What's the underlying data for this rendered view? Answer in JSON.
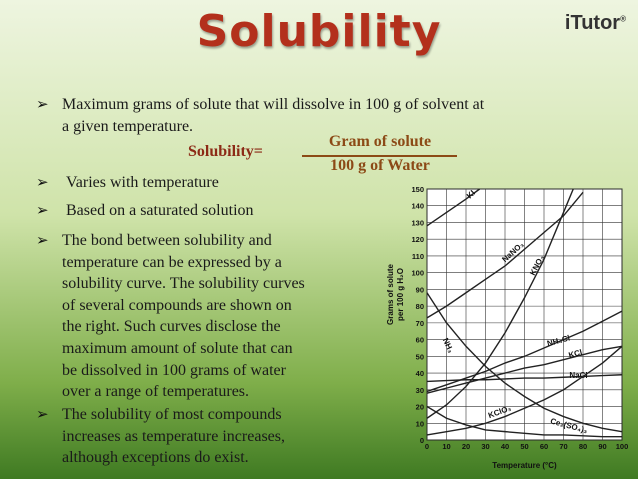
{
  "header": {
    "title": "Solubility",
    "logo": "iTutor",
    "logo_mark": "®"
  },
  "bullets": [
    [
      "Maximum grams of solute that will dissolve in 100 g of solvent at",
      "a given temperature."
    ],
    [
      "Varies with temperature"
    ],
    [
      "Based on a saturated solution"
    ],
    [
      "The bond between solubility and",
      "temperature can be expressed by a",
      "solubility curve. The solubility curves",
      "of several compounds are shown on",
      "the right. Such curves disclose the",
      "maximum amount of solute that can",
      "be dissolved in 100 grams of water",
      "over a range of temperatures."
    ],
    [
      "The solubility of most compounds",
      "increases as temperature increases,",
      "although exceptions do exist."
    ]
  ],
  "formula": {
    "label": "Solubility=",
    "numerator": "Gram of solute",
    "denominator": "100 g of Water"
  },
  "chart_data": {
    "type": "line",
    "x_label": "Temperature (°C)",
    "y_label": [
      "Grams of solute",
      "per 100 g H₂O"
    ],
    "xlim": [
      0,
      100
    ],
    "ylim": [
      0,
      150
    ],
    "xticks": [
      0,
      10,
      20,
      30,
      40,
      50,
      60,
      70,
      80,
      90,
      100
    ],
    "yticks": [
      0,
      10,
      20,
      30,
      40,
      50,
      60,
      70,
      80,
      90,
      100,
      110,
      120,
      130,
      140,
      150
    ],
    "grid": true,
    "color": "#222222",
    "series": [
      {
        "name": "KI",
        "x": [
          0,
          10,
          20,
          27
        ],
        "values": [
          128,
          136,
          144,
          150
        ]
      },
      {
        "name": "NaNO₃",
        "x": [
          0,
          10,
          20,
          30,
          40,
          50,
          60,
          70,
          80
        ],
        "values": [
          73,
          80,
          88,
          96,
          104,
          114,
          124,
          134,
          148
        ]
      },
      {
        "name": "KNO₃",
        "x": [
          0,
          10,
          20,
          30,
          40,
          50,
          60,
          70,
          75
        ],
        "values": [
          13,
          21,
          32,
          46,
          64,
          85,
          108,
          136,
          150
        ]
      },
      {
        "name": "NH₃",
        "x": [
          0,
          10,
          20,
          30,
          40,
          50,
          60,
          70,
          80,
          90,
          100
        ],
        "values": [
          88,
          70,
          56,
          44,
          34,
          26,
          19,
          14,
          10,
          7,
          5
        ]
      },
      {
        "name": "NH₄Cl",
        "x": [
          0,
          10,
          20,
          30,
          40,
          50,
          60,
          70,
          80,
          90,
          100
        ],
        "values": [
          29,
          33,
          37,
          41,
          46,
          50,
          55,
          60,
          65,
          71,
          77
        ]
      },
      {
        "name": "KCl",
        "x": [
          0,
          10,
          20,
          30,
          40,
          50,
          60,
          70,
          80,
          90,
          100
        ],
        "values": [
          28,
          31,
          34,
          37,
          40,
          43,
          45,
          48,
          51,
          54,
          56
        ]
      },
      {
        "name": "NaCl",
        "x": [
          0,
          10,
          20,
          30,
          40,
          50,
          60,
          70,
          80,
          90,
          100
        ],
        "values": [
          35,
          35.5,
          36,
          36,
          36.5,
          37,
          37,
          37.5,
          38,
          38.5,
          39
        ]
      },
      {
        "name": "KClO₃",
        "x": [
          0,
          10,
          20,
          30,
          40,
          50,
          60,
          70,
          80,
          90,
          100
        ],
        "values": [
          3,
          5,
          7,
          10,
          14,
          19,
          24,
          30,
          38,
          46,
          56
        ]
      },
      {
        "name": "Ce₂(SO₄)₃",
        "x": [
          0,
          10,
          20,
          30,
          40,
          50,
          60,
          70,
          80,
          90,
          100
        ],
        "values": [
          20,
          13,
          9,
          6,
          5,
          4,
          3,
          3,
          2.5,
          2,
          2
        ]
      }
    ]
  }
}
